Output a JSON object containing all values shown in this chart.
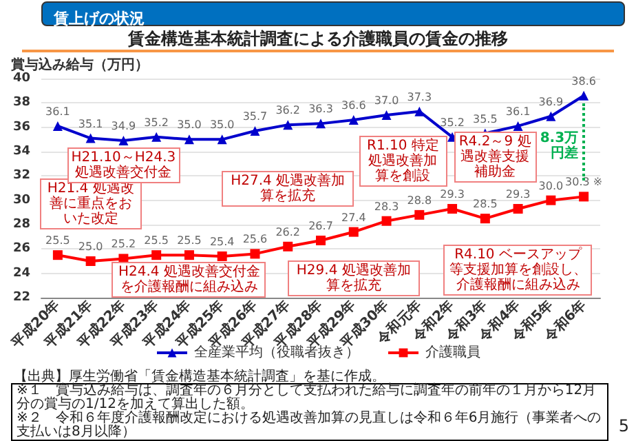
{
  "chart_data": {
    "type": "line",
    "title": "賃上げの状況",
    "subtitle": "賃金構造基本統計調査による介護職員の賃金の推移",
    "ylabel": "賞与込み給与（万円）",
    "categories": [
      "平成20年",
      "平成21年",
      "平成22年",
      "平成23年",
      "平成24年",
      "平成25年",
      "平成26年",
      "平成27年",
      "平成28年",
      "平成29年",
      "平成30年",
      "令和元年",
      "令和2年",
      "令和3年",
      "令和4年",
      "令和5年",
      "令和6年"
    ],
    "series": [
      {
        "name": "全産業平均（役職者抜き）",
        "color": "#0000cc",
        "marker": "triangle",
        "values": [
          36.1,
          35.1,
          34.9,
          35.2,
          35.0,
          35.0,
          35.7,
          36.2,
          36.3,
          36.6,
          37.0,
          37.3,
          35.2,
          35.5,
          36.1,
          36.9,
          38.6
        ],
        "value_labels": [
          "36.1",
          "35.1",
          "34.9",
          "35.2",
          "35.0",
          "35.0",
          "35.7",
          "36.2",
          "36.3",
          "36.6",
          "37.0",
          "37.3",
          "35.2",
          "35.5",
          "36.1",
          "36.9",
          "38.6"
        ]
      },
      {
        "name": "介護職員",
        "color": "#ff0000",
        "marker": "square",
        "values": [
          25.5,
          25.0,
          25.2,
          25.5,
          25.5,
          25.4,
          25.6,
          26.2,
          26.7,
          27.4,
          28.3,
          28.8,
          29.3,
          28.5,
          29.3,
          30.0,
          30.3
        ],
        "value_labels": [
          "25.5",
          "25.0",
          "25.2",
          "25.5",
          "25.5",
          "25.4",
          "25.6",
          "26.2",
          "26.7",
          "27.4",
          "28.3",
          "28.8",
          "29.3",
          "28.5",
          "29.3",
          "30.0",
          "30.3 ※"
        ]
      }
    ],
    "ylim": [
      22,
      40
    ],
    "yticks": [
      22,
      24,
      26,
      28,
      30,
      32,
      34,
      36,
      38,
      40
    ],
    "grid": "y",
    "legend": "bottom",
    "annotations": [
      "H21.4 処遇改善に重点をおいた改定",
      "H21.10～H24.3 処遇改善交付金",
      "H24.4 処遇改善交付金を介護報酬に組み込み",
      "H27.4 処遇改善加算を拡充",
      "H29.4 処遇改善加算を拡充",
      "R1.10 特定処遇改善加算を創設",
      "R4.2～9 処遇改善支援補助金",
      "R4.10 ベースアップ等支援加算を創設し、介護報酬に組み込み",
      "8.3万円差",
      "【出典】厚生労働省「賃金構造基本統計調査」を基に作成。",
      "※１　賞与込み給与は、調査年の６月分として支払われた給与に調査年の前年の１月から12月分の賞与の1/12を加えて算出した額。",
      "※２　令和６年度介護報酬改定における処遇改善加算の見直しは令和６年6月施行（事業者への支払いは8月以降）",
      "5"
    ]
  }
}
